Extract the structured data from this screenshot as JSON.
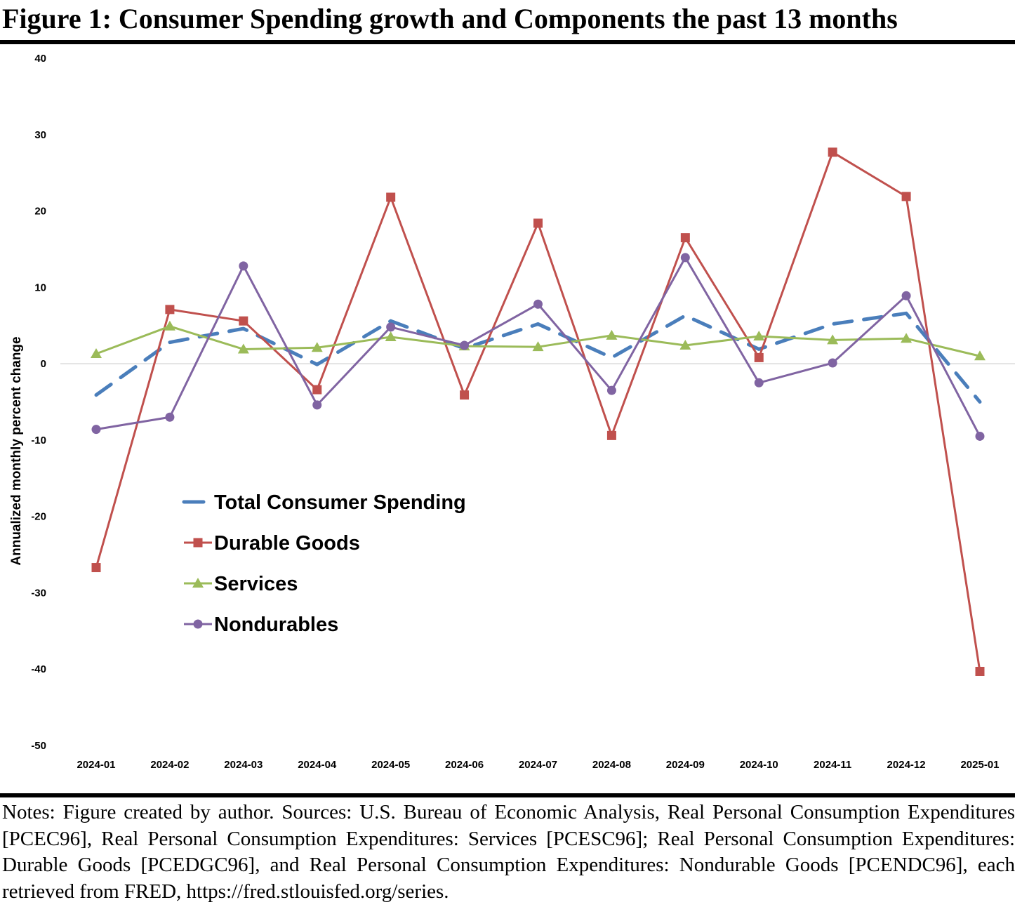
{
  "title": "Figure 1: Consumer Spending growth and Components the past 13 months",
  "notes": "Notes: Figure created by author. Sources: U.S. Bureau of Economic Analysis, Real Personal Consumption Expenditures [PCEC96], Real Personal Consumption Expenditures: Services [PCESC96]; Real Personal Consumption Expenditures: Durable Goods [PCEDGC96], and Real Personal Consumption Expenditures: Nondurable Goods [PCENDC96], each retrieved from FRED, https://fred.stlouisfed.org/series.",
  "chart_data": {
    "type": "line",
    "title": "",
    "xlabel": "",
    "ylabel": "Annualized monthly percent change",
    "ylim": [
      -50,
      40
    ],
    "yticks": [
      40,
      30,
      20,
      10,
      0,
      -10,
      -20,
      -30,
      -40,
      -50
    ],
    "categories": [
      "2024-01",
      "2024-02",
      "2024-03",
      "2024-04",
      "2024-05",
      "2024-06",
      "2024-07",
      "2024-08",
      "2024-09",
      "2024-10",
      "2024-11",
      "2024-12",
      "2025-01"
    ],
    "grid": false,
    "legend_position": "lower-left",
    "series": [
      {
        "name": "Total Consumer Spending",
        "color": "#4a7ebb",
        "style": "dashed",
        "marker": "none",
        "values": [
          -4.1,
          2.8,
          4.6,
          -0.1,
          5.6,
          2.0,
          5.2,
          0.8,
          6.3,
          1.9,
          5.2,
          6.6,
          -5.0
        ]
      },
      {
        "name": "Durable Goods",
        "color": "#c0504d",
        "style": "solid",
        "marker": "square",
        "values": [
          -26.7,
          7.1,
          5.6,
          -3.4,
          21.8,
          -4.1,
          18.4,
          -9.4,
          16.5,
          0.8,
          27.7,
          21.9,
          -40.3
        ]
      },
      {
        "name": "Services",
        "color": "#9bbb59",
        "style": "solid",
        "marker": "triangle",
        "values": [
          1.3,
          4.9,
          1.9,
          2.1,
          3.5,
          2.3,
          2.2,
          3.7,
          2.4,
          3.6,
          3.1,
          3.3,
          1.0
        ]
      },
      {
        "name": "Nondurables",
        "color": "#8064a2",
        "style": "solid",
        "marker": "circle",
        "values": [
          -8.6,
          -7.0,
          12.8,
          -5.4,
          4.8,
          2.4,
          7.8,
          -3.5,
          13.9,
          -2.5,
          0.1,
          8.9,
          -9.5
        ]
      }
    ]
  }
}
